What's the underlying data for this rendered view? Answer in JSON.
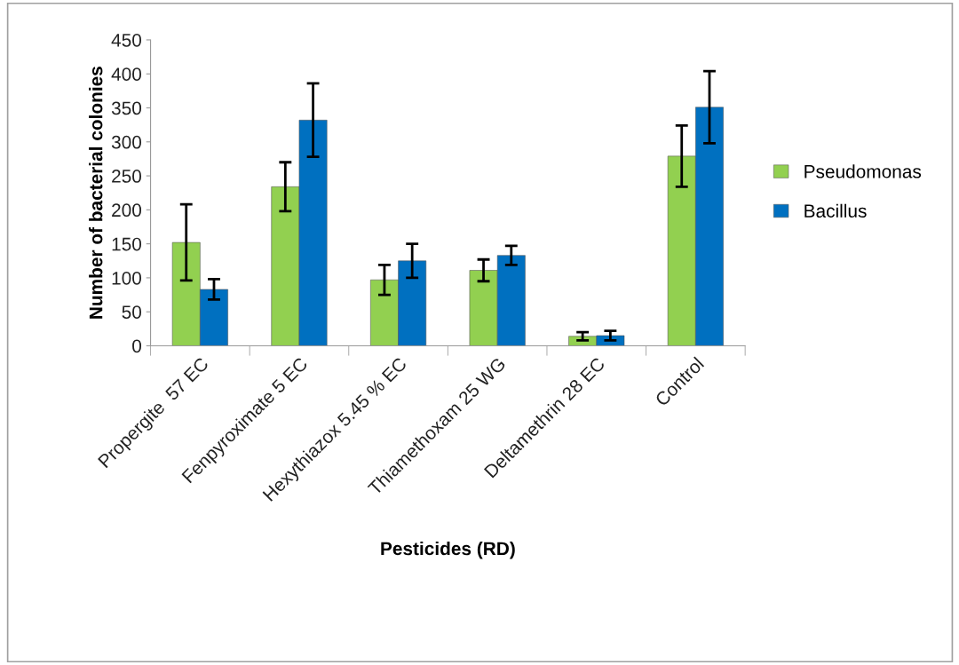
{
  "chart_data": {
    "type": "bar",
    "xlabel": "Pesticides (RD)",
    "ylabel": "Number of bacterial colonies",
    "categories": [
      "Propergite  57 EC",
      "Fenpyroximate 5 EC",
      "Hexythiazox 5.45 % EC",
      "Thiamethoxam 25 WG",
      "Deltamethrin 28 EC",
      "Control"
    ],
    "series": [
      {
        "name": "Pseudomonas",
        "color": "#92d050",
        "values": [
          152,
          234,
          97,
          111,
          14,
          279
        ],
        "errors": [
          56,
          36,
          22,
          16,
          6,
          45
        ]
      },
      {
        "name": "Bacillus",
        "color": "#0070c0",
        "values": [
          83,
          332,
          125,
          133,
          15,
          351
        ],
        "errors": [
          15,
          54,
          25,
          14,
          7,
          53
        ]
      }
    ],
    "ylim": [
      0,
      450
    ],
    "yticks": [
      0,
      50,
      100,
      150,
      200,
      250,
      300,
      350,
      400,
      450
    ],
    "grid": false,
    "legend": "right"
  }
}
